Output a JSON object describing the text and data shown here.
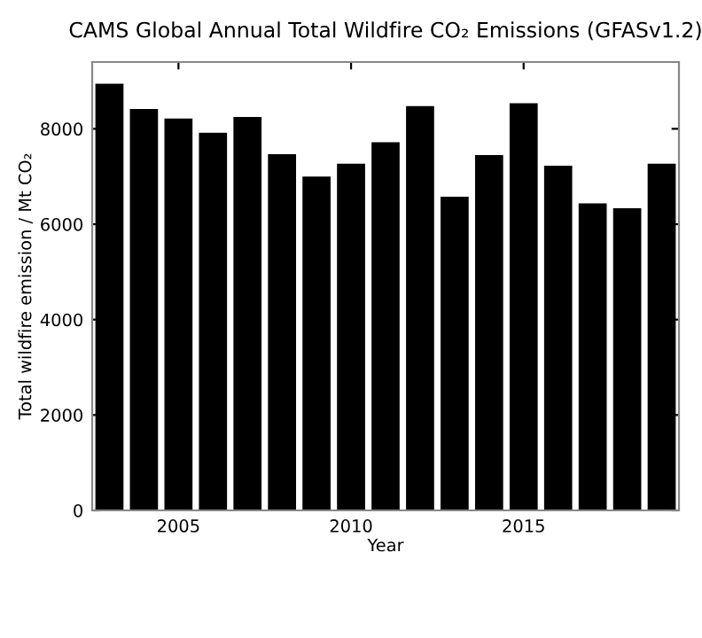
{
  "chart_data": {
    "type": "bar",
    "title": "CAMS Global Annual Total Wildfire CO₂ Emissions (GFASv1.2)",
    "xlabel": "Year",
    "ylabel": "Total wildfire emission / Mt CO₂",
    "x": [
      2003,
      2004,
      2005,
      2006,
      2007,
      2008,
      2009,
      2010,
      2011,
      2012,
      2013,
      2014,
      2015,
      2016,
      2017,
      2018,
      2019
    ],
    "values": [
      8960,
      8430,
      8230,
      7930,
      8260,
      7480,
      7010,
      7280,
      7730,
      8490,
      6590,
      7460,
      8550,
      7240,
      6450,
      6350,
      7280
    ],
    "color": "#000000",
    "xlim": [
      2002.5,
      2019.5
    ],
    "xticks": [
      2005,
      2010,
      2015
    ],
    "ylim": [
      0,
      9400
    ],
    "yticks": [
      0,
      2000,
      4000,
      6000,
      8000
    ],
    "grid": false
  }
}
